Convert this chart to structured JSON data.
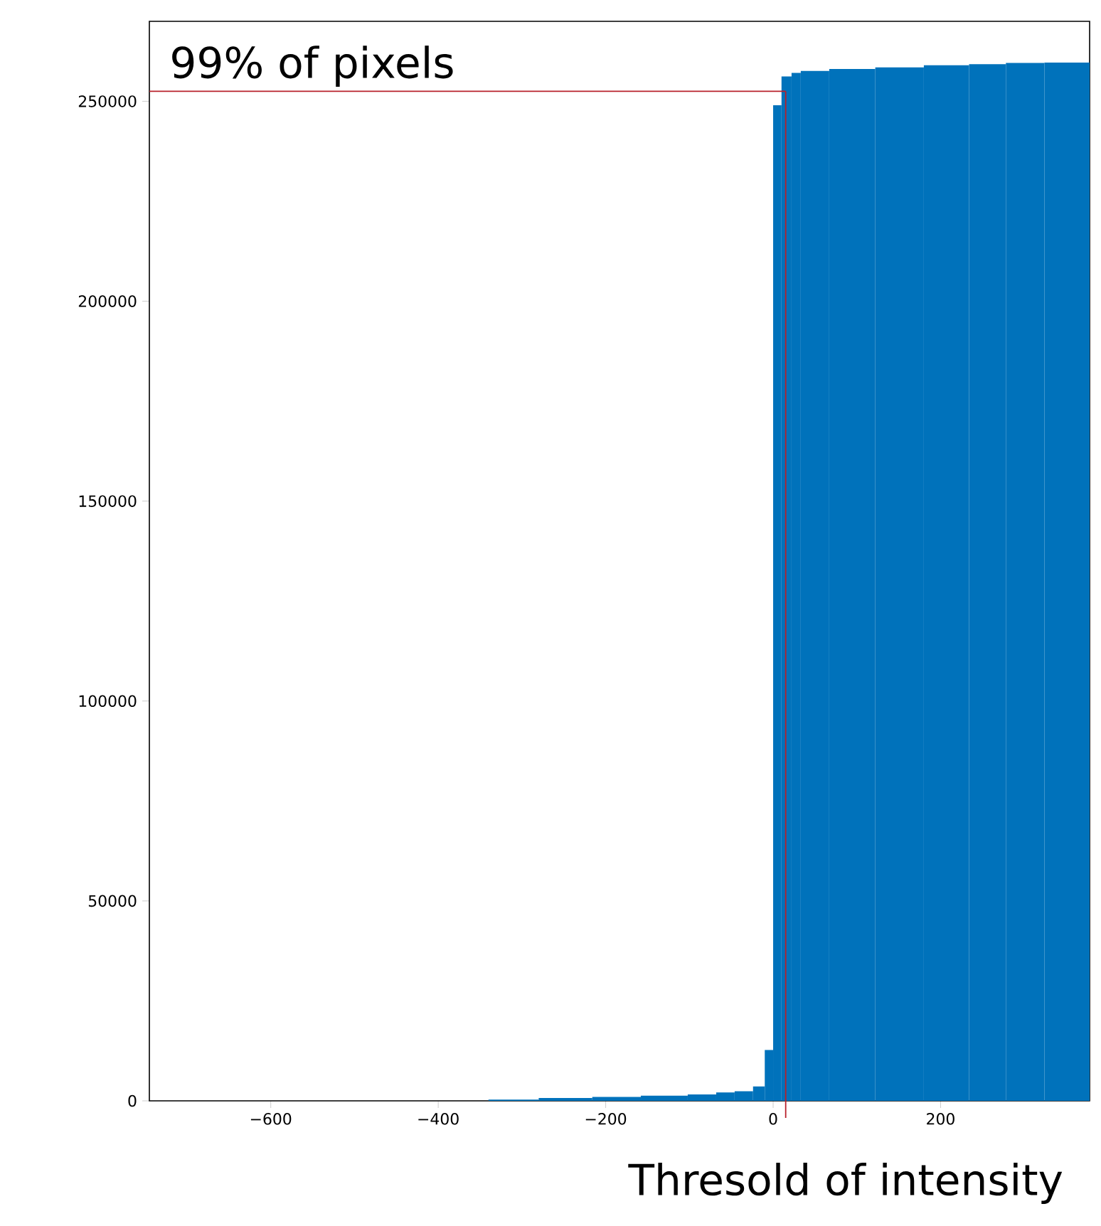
{
  "chart_data": {
    "type": "histogram",
    "xlabel": "Thresold of intensity",
    "bins": [
      -340,
      -280,
      -216,
      -158,
      -102,
      -68,
      -46,
      -24,
      -10,
      0,
      10,
      22,
      33,
      67,
      122,
      180,
      234,
      278,
      324,
      378
    ],
    "values": [
      300,
      700,
      1000,
      1300,
      1600,
      2100,
      2400,
      3600,
      12700,
      249000,
      256200,
      257100,
      257600,
      258100,
      258500,
      259000,
      259300,
      259600,
      259700
    ],
    "color": "#0072bb",
    "xlim": [
      -745,
      378
    ],
    "ylim": [
      0,
      270000
    ],
    "xticks": [
      -600,
      -400,
      -200,
      0,
      200
    ],
    "yticks": [
      0,
      50000,
      100000,
      150000,
      200000,
      250000
    ],
    "ref_lines": [
      {
        "axis": "y",
        "value": 252500,
        "label": "99% of pixels",
        "color": "#b8202a"
      },
      {
        "axis": "x",
        "value": 15,
        "color": "#b8202a"
      }
    ]
  }
}
